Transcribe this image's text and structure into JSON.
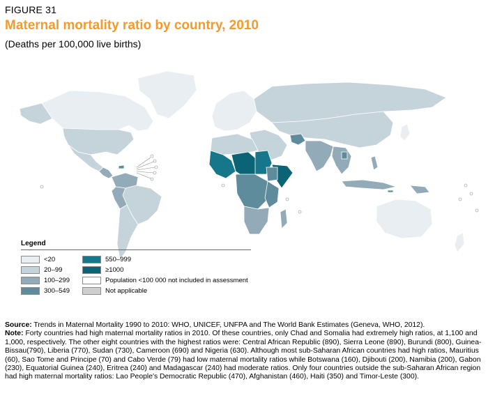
{
  "figure_label": "FIGURE 31",
  "title": "Maternal mortality ratio by country, 2010",
  "subtitle": "(Deaths per 100,000 live births)",
  "legend": {
    "title": "Legend",
    "items": [
      {
        "label": "<20",
        "color": "#e8eef1"
      },
      {
        "label": "20–99",
        "color": "#c5d3da"
      },
      {
        "label": "100–299",
        "color": "#93abb8"
      },
      {
        "label": "300–549",
        "color": "#5f8c9c"
      },
      {
        "label": "550–999",
        "color": "#16768a"
      },
      {
        "label": "≥1000",
        "color": "#0b6476"
      },
      {
        "label": "Population <100 000 not included in assessment",
        "color": "#ffffff"
      },
      {
        "label": "Not applicable",
        "color": "#cfcfcf"
      }
    ]
  },
  "notes": {
    "source_label": "Source:",
    "source_text": " Trends in Maternal Mortality 1990 to 2010: WHO, UNICEF, UNFPA and The World Bank Estimates (Geneva, WHO, 2012).",
    "note_label": "Note:",
    "note_text": " Forty countries had high maternal mortality ratios in 2010. Of these countries, only Chad and Somalia had extremely high ratios, at 1,100 and 1,000, respectively. The other eight countries with the highest ratios were: Central African Republic (890), Sierra Leone (890), Burundi (800), Guinea-Bissau(790), Liberia (770), Sudan (730), Cameroon (690) and Nigeria (630). Although most sub-Saharan African countries had high ratios, Mauritius (60), Sao Tome and Principe (70) and Cabo Verde (79) had low maternal mortality ratios while Botswana (160), Djibouti (200), Namibia (200), Gabon (230), Equatorial Guinea (240), Eritrea (240) and Madagascar (240) had moderate ratios. Only four countries outside the sub-Saharan African region had high maternal mortality ratios: Lao People's Democratic Republic (470), Afghanistan (460), Haiti (350) and Timor-Leste (300)."
  }
}
